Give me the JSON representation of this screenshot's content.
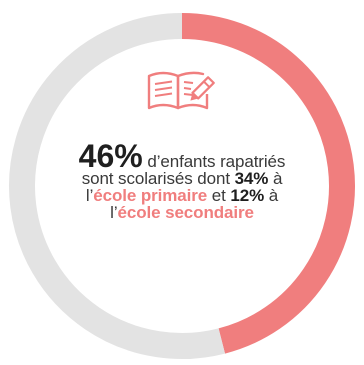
{
  "chart_data": {
    "type": "pie",
    "variant": "donut",
    "slices": [
      {
        "label": "",
        "value": 46,
        "color": "#f07e7e"
      },
      {
        "label": "",
        "value": 54,
        "color": "#e3e3e3"
      }
    ]
  },
  "colors": {
    "accent": "#f07e7e",
    "track": "#e3e3e3",
    "text": "#3a3a3a"
  },
  "icon": "open-book-with-pencil-icon",
  "statement": {
    "main_value": "46%",
    "part1": "d’enfants rapatriés sont scolarisés dont",
    "value_primary": "34%",
    "part2": "à l’",
    "label_primary": "école primaire",
    "part3": "et",
    "value_secondary": "12%",
    "part4": "à l’",
    "label_secondary": "école secondaire"
  }
}
